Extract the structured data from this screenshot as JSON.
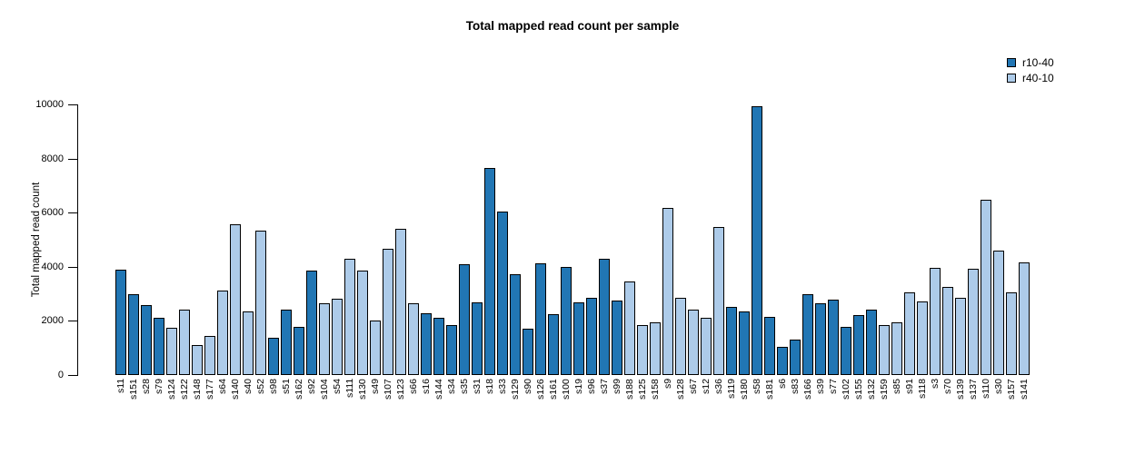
{
  "chart_data": {
    "type": "bar",
    "title": "Total mapped read count per sample",
    "xlabel": "",
    "ylabel": "Total mapped read count",
    "ylim": [
      0,
      10000
    ],
    "y_ticks": [
      0,
      2000,
      4000,
      6000,
      8000,
      10000
    ],
    "grid": false,
    "legend_position": "top-right",
    "series": [
      {
        "name": "r10-40",
        "color": "#2176b4"
      },
      {
        "name": "r40-10",
        "color": "#adcbe9"
      }
    ],
    "categories": [
      "s11",
      "s151",
      "s28",
      "s79",
      "s124",
      "s122",
      "s148",
      "s177",
      "s64",
      "s140",
      "s40",
      "s52",
      "s98",
      "s51",
      "s162",
      "s92",
      "s104",
      "s54",
      "s111",
      "s130",
      "s49",
      "s107",
      "s123",
      "s66",
      "s16",
      "s144",
      "s34",
      "s35",
      "s31",
      "s18",
      "s33",
      "s129",
      "s90",
      "s126",
      "s161",
      "s100",
      "s19",
      "s96",
      "s37",
      "s99",
      "s188",
      "s125",
      "s158",
      "s9",
      "s128",
      "s67",
      "s12",
      "s36",
      "s119",
      "s180",
      "s58",
      "s181",
      "s6",
      "s83",
      "s166",
      "s39",
      "s77",
      "s102",
      "s155",
      "s132",
      "s159",
      "s85",
      "s91",
      "s118",
      "s3",
      "s70",
      "s139",
      "s137",
      "s110",
      "s30",
      "s157",
      "s141"
    ],
    "values": [
      3880,
      3000,
      2600,
      2100,
      1750,
      2400,
      1100,
      1430,
      3130,
      5560,
      2350,
      5330,
      1380,
      2430,
      1780,
      3870,
      2650,
      2830,
      4300,
      3850,
      2030,
      4670,
      5400,
      2650,
      2280,
      2130,
      1850,
      4100,
      2680,
      7650,
      6050,
      3730,
      1720,
      4130,
      2250,
      4000,
      2670,
      2850,
      4300,
      2750,
      3450,
      1860,
      1950,
      6170,
      2850,
      2400,
      2120,
      5480,
      2500,
      2360,
      9930,
      2160,
      1030,
      1300,
      3000,
      2650,
      2800,
      1790,
      2200,
      2420,
      1860,
      1950,
      3050,
      2720,
      3950,
      3270,
      2840,
      3940,
      6490,
      4600,
      3060,
      4160
    ],
    "groups": [
      "r10-40",
      "r10-40",
      "r10-40",
      "r10-40",
      "r40-10",
      "r40-10",
      "r40-10",
      "r40-10",
      "r40-10",
      "r40-10",
      "r40-10",
      "r40-10",
      "r10-40",
      "r10-40",
      "r10-40",
      "r10-40",
      "r40-10",
      "r40-10",
      "r40-10",
      "r40-10",
      "r40-10",
      "r40-10",
      "r40-10",
      "r40-10",
      "r10-40",
      "r10-40",
      "r10-40",
      "r10-40",
      "r10-40",
      "r10-40",
      "r10-40",
      "r10-40",
      "r10-40",
      "r10-40",
      "r10-40",
      "r10-40",
      "r10-40",
      "r10-40",
      "r10-40",
      "r10-40",
      "r40-10",
      "r40-10",
      "r40-10",
      "r40-10",
      "r40-10",
      "r40-10",
      "r40-10",
      "r40-10",
      "r10-40",
      "r10-40",
      "r10-40",
      "r10-40",
      "r10-40",
      "r10-40",
      "r10-40",
      "r10-40",
      "r10-40",
      "r10-40",
      "r10-40",
      "r10-40",
      "r40-10",
      "r40-10",
      "r40-10",
      "r40-10",
      "r40-10",
      "r40-10",
      "r40-10",
      "r40-10",
      "r40-10",
      "r40-10",
      "r40-10",
      "r40-10"
    ]
  }
}
